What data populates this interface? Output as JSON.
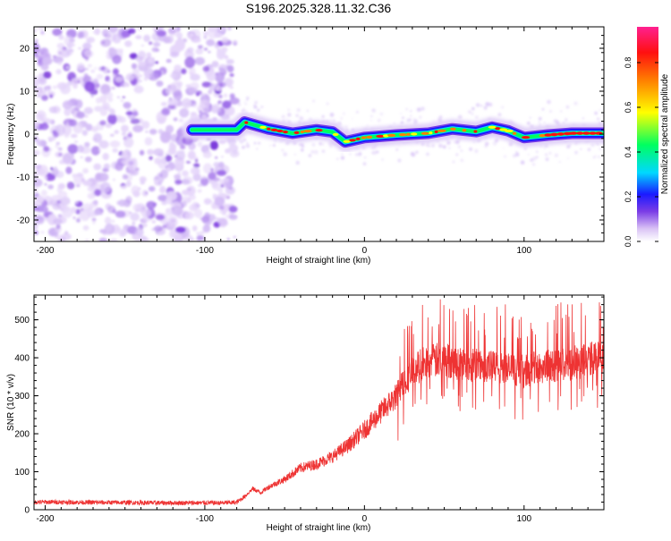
{
  "title": "S196.2025.328.11.32.C36",
  "chart_data": [
    {
      "type": "heatmap",
      "xlabel": "Height of straight line (km)",
      "ylabel": "Frequency (Hz)",
      "xlim": [
        -207,
        150
      ],
      "ylim": [
        -25,
        25
      ],
      "xticks": [
        -200,
        -100,
        0,
        100
      ],
      "yticks": [
        -20,
        -10,
        0,
        10,
        20
      ],
      "colorbar": {
        "label": "Normalized spectral amplitude",
        "range": [
          0,
          0.96
        ],
        "ticks": [
          0,
          0.2,
          0.4,
          0.6,
          0.8
        ],
        "tick_labels": [
          "0.0",
          "0.2",
          "0.4",
          "0.6",
          "0.8"
        ]
      },
      "noise_region": {
        "x_from": -207,
        "x_to": -81
      },
      "ridge": [
        {
          "x": -108,
          "freq": 1.0
        },
        {
          "x": -95,
          "freq": 1.0
        },
        {
          "x": -80,
          "freq": 1.0
        },
        {
          "x": -75,
          "freq": 2.8
        },
        {
          "x": -60,
          "freq": 1.2
        },
        {
          "x": -45,
          "freq": 0.2
        },
        {
          "x": -30,
          "freq": 1.0
        },
        {
          "x": -20,
          "freq": 0.5
        },
        {
          "x": -12,
          "freq": -1.8
        },
        {
          "x": 0,
          "freq": -0.8
        },
        {
          "x": 20,
          "freq": -0.2
        },
        {
          "x": 40,
          "freq": 0.2
        },
        {
          "x": 55,
          "freq": 1.2
        },
        {
          "x": 70,
          "freq": 0.6
        },
        {
          "x": 80,
          "freq": 1.6
        },
        {
          "x": 90,
          "freq": 0.8
        },
        {
          "x": 100,
          "freq": -0.8
        },
        {
          "x": 115,
          "freq": -0.2
        },
        {
          "x": 130,
          "freq": 0.2
        },
        {
          "x": 150,
          "freq": 0.2
        }
      ]
    },
    {
      "type": "line",
      "xlabel": "Height of straight line (km)",
      "ylabel": "SNR (10 * v/v)",
      "xlim": [
        -207,
        150
      ],
      "ylim": [
        0,
        565
      ],
      "xticks": [
        -200,
        -100,
        0,
        100
      ],
      "yticks": [
        0,
        100,
        200,
        300,
        400,
        500
      ],
      "color": "#ee3333",
      "series": [
        {
          "name": "SNR",
          "x": [
            -207,
            -190,
            -170,
            -150,
            -130,
            -110,
            -90,
            -80,
            -75,
            -70,
            -65,
            -60,
            -50,
            -40,
            -30,
            -20,
            -10,
            0,
            10,
            20,
            25,
            30,
            35,
            40,
            50,
            60,
            70,
            80,
            90,
            100,
            110,
            120,
            130,
            140,
            150
          ],
          "y": [
            20,
            20,
            19,
            19,
            18,
            18,
            18,
            19,
            35,
            55,
            45,
            60,
            80,
            110,
            120,
            140,
            170,
            210,
            255,
            300,
            340,
            360,
            380,
            390,
            395,
            385,
            380,
            375,
            370,
            365,
            375,
            380,
            385,
            395,
            400
          ]
        }
      ]
    }
  ]
}
